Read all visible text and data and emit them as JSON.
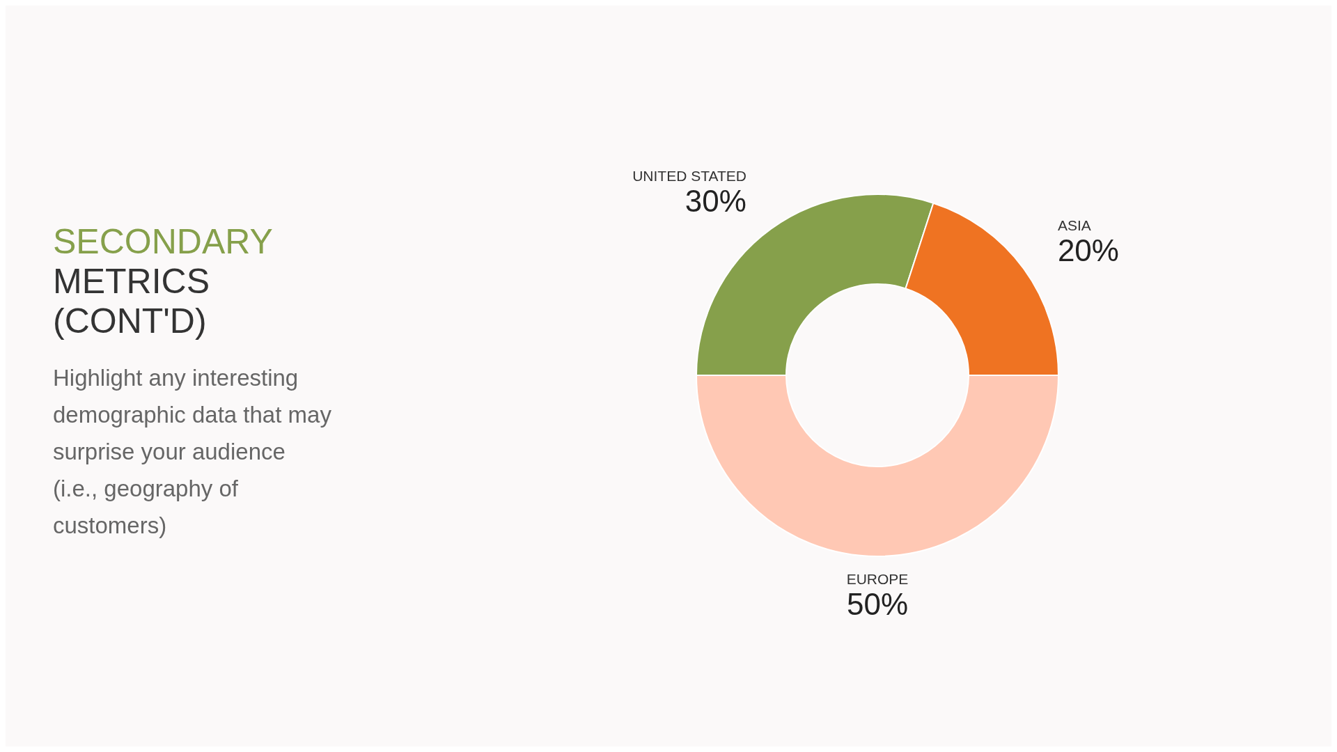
{
  "chart_data": {
    "type": "donut",
    "title": "SECONDARY METRICS (CONT'D)",
    "subtitle": "Highlight any interesting demographic data that may surprise your audience (i.e., geography of customers)",
    "categories": [
      "UNITED STATED",
      "ASIA",
      "EUROPE"
    ],
    "values": [
      30,
      20,
      50
    ],
    "value_labels": [
      "30%",
      "20%",
      "50%"
    ],
    "colors": [
      "#86a04b",
      "#ef7322",
      "#ffc8b4"
    ]
  }
}
